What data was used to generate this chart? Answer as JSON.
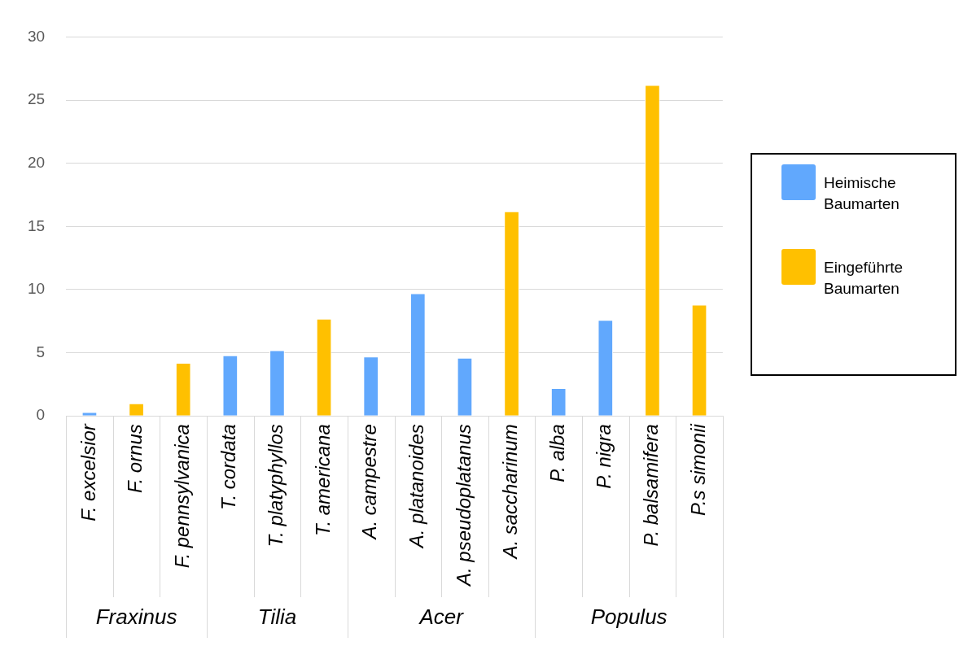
{
  "chart_data": {
    "type": "bar",
    "categories": [
      "F. excelsior",
      "F. ornus",
      "F. pennsylvanica",
      "T. cordata",
      "T. platyphyllos",
      "T. americana",
      "A. campestre",
      "A. platanoides",
      "A. pseudoplatanus",
      "A. saccharinum",
      "P. alba",
      "P. nigra",
      "P. balsamifera",
      "P.s simonii"
    ],
    "series": [
      {
        "name": "Heimische Baumarten",
        "color": "#61a8fd",
        "values": [
          0.3,
          null,
          null,
          4.8,
          5.2,
          null,
          4.7,
          9.7,
          4.6,
          null,
          2.2,
          7.6,
          null,
          null
        ]
      },
      {
        "name": "Eingeführte Baumarten",
        "color": "#ffc000",
        "values": [
          null,
          1.0,
          4.2,
          null,
          null,
          7.7,
          null,
          null,
          null,
          16.2,
          null,
          null,
          26.2,
          8.8
        ]
      }
    ],
    "annotations": [
      "Fraxinus",
      "Tilia",
      "Acer",
      "Populus"
    ],
    "ylim": [
      0,
      30
    ],
    "yticks": [
      0,
      5,
      10,
      15,
      20,
      25,
      30
    ],
    "grid": "y",
    "legend": "right"
  }
}
